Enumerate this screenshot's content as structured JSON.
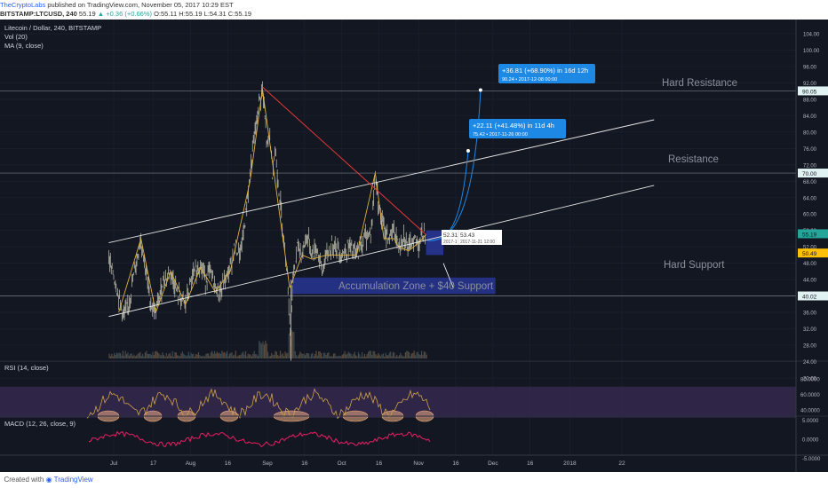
{
  "header": {
    "author": "TheCryptoLabs",
    "published": "published on TradingView.com, November 05, 2017 10:29 EST",
    "symbol": "BITSTAMP:LTCUSD, 240",
    "last": "55.19",
    "change": "+0.36 (+0.66%)",
    "ohlc": "O:55.11 H:55.19 L:54.31 C:55.19"
  },
  "legend": {
    "title": "Litecoin / Dollar, 240, BITSTAMP",
    "vol": "Vol (20)",
    "ma": "MA (9, close)"
  },
  "annotations": {
    "hard_resistance": "Hard Resistance",
    "resistance": "Resistance",
    "hard_support": "Hard Support",
    "accumulation": "Accumulation Zone + $40 Support",
    "measure1_line1": "+22.11 (+41.48%) in 11d 4h",
    "measure1_line2": "75.42  •  2017-11-26  00:00",
    "measure2_line1": "+36.81 (+68.90%) in 16d 12h",
    "measure2_line2": "90.24  •  2017-12-08  00:00",
    "tip_a": "52.31",
    "tip_a_date": "2017-1",
    "tip_b": "53.43",
    "tip_b_date": "2017-11-21  12:00"
  },
  "panes": {
    "rsi": "RSI (14, close)",
    "macd": "MACD (12, 26, close, 9)"
  },
  "footer": {
    "created": "Created with",
    "brand": "TradingView"
  },
  "colors": {
    "background": "#131722",
    "candles": "#c8c8b4",
    "channel": "#e6e6e6",
    "downtrend": "#e53935",
    "wave": "#e0b13a",
    "zone": "#283593",
    "measure": "#1e88e5",
    "rsi_band": "#3b2c57",
    "rsi_line": "#cfa24a",
    "macd": "#e91e63"
  },
  "chart_data": {
    "type": "line",
    "title": "Litecoin / Dollar, 240, BITSTAMP",
    "xlabel": "",
    "ylabel": "",
    "price_ticks": [
      "104.00",
      "100.00",
      "96.00",
      "92.00",
      "88.00",
      "84.00",
      "80.00",
      "76.00",
      "72.00",
      "68.00",
      "64.00",
      "60.00",
      "56.00",
      "52.00",
      "48.00",
      "44.00",
      "40.00",
      "36.00",
      "32.00",
      "28.00",
      "24.00",
      "20.00"
    ],
    "price_labels": [
      {
        "text": "90.05",
        "value": 90.05
      },
      {
        "text": "70.00",
        "value": 70.0
      },
      {
        "text": "55.19",
        "value": 55.19
      },
      {
        "text": "50.49",
        "value": 50.49
      },
      {
        "text": "40.02",
        "value": 40.02
      }
    ],
    "rsi_ticks": [
      {
        "text": "80.0000",
        "value": 80
      },
      {
        "text": "60.0000",
        "value": 60
      },
      {
        "text": "40.0000",
        "value": 40
      }
    ],
    "macd_ticks": [
      {
        "text": "5.0000",
        "value": 5
      },
      {
        "text": "0.0000",
        "value": 0
      },
      {
        "text": "-5.0000",
        "value": -5
      }
    ],
    "x_ticks": [
      {
        "text": "Jul",
        "day": 1
      },
      {
        "text": "17",
        "day": 17
      },
      {
        "text": "Aug",
        "day": 32
      },
      {
        "text": "16",
        "day": 47
      },
      {
        "text": "Sep",
        "day": 63
      },
      {
        "text": "16",
        "day": 78
      },
      {
        "text": "Oct",
        "day": 93
      },
      {
        "text": "16",
        "day": 108
      },
      {
        "text": "Nov",
        "day": 124
      },
      {
        "text": "16",
        "day": 139
      },
      {
        "text": "Dec",
        "day": 154
      },
      {
        "text": "16",
        "day": 169
      },
      {
        "text": "2018",
        "day": 185
      },
      {
        "text": "22",
        "day": 206
      }
    ],
    "price_series": [
      [
        -1,
        49
      ],
      [
        1,
        45
      ],
      [
        3,
        40
      ],
      [
        5,
        35
      ],
      [
        7,
        38
      ],
      [
        10,
        48
      ],
      [
        12,
        54
      ],
      [
        14,
        46
      ],
      [
        16,
        38
      ],
      [
        18,
        36
      ],
      [
        21,
        44
      ],
      [
        24,
        46
      ],
      [
        27,
        40
      ],
      [
        30,
        38
      ],
      [
        33,
        45
      ],
      [
        36,
        48
      ],
      [
        38,
        44
      ],
      [
        40,
        46
      ],
      [
        42,
        42
      ],
      [
        44,
        41
      ],
      [
        46,
        44
      ],
      [
        48,
        47
      ],
      [
        50,
        52
      ],
      [
        52,
        50
      ],
      [
        54,
        58
      ],
      [
        56,
        70
      ],
      [
        58,
        80
      ],
      [
        60,
        88
      ],
      [
        61,
        90.5
      ],
      [
        62,
        83
      ],
      [
        63,
        76
      ],
      [
        64,
        80
      ],
      [
        65,
        70
      ],
      [
        66,
        76
      ],
      [
        67,
        70
      ],
      [
        68,
        64
      ],
      [
        69,
        58
      ],
      [
        70,
        52
      ],
      [
        71,
        46
      ],
      [
        72,
        34
      ],
      [
        72.5,
        30
      ],
      [
        73,
        42
      ],
      [
        75,
        52
      ],
      [
        77,
        50
      ],
      [
        79,
        55
      ],
      [
        81,
        50
      ],
      [
        83,
        52
      ],
      [
        85,
        46
      ],
      [
        87,
        50
      ],
      [
        90,
        53
      ],
      [
        93,
        50
      ],
      [
        96,
        52
      ],
      [
        99,
        50
      ],
      [
        102,
        54
      ],
      [
        105,
        56
      ],
      [
        106.5,
        70
      ],
      [
        108,
        62
      ],
      [
        110,
        56
      ],
      [
        112,
        54
      ],
      [
        114,
        56
      ],
      [
        116,
        52
      ],
      [
        118,
        55
      ],
      [
        120,
        51
      ],
      [
        122,
        54
      ],
      [
        124,
        53
      ],
      [
        126,
        55
      ],
      [
        127,
        55.19
      ]
    ],
    "downtrend": [
      [
        61,
        91
      ],
      [
        127,
        55
      ]
    ],
    "channel_upper": [
      [
        -1,
        53
      ],
      [
        219,
        83
      ]
    ],
    "channel_lower": [
      [
        -1,
        35
      ],
      [
        219,
        67
      ]
    ],
    "horizontal_levels": [
      90.05,
      70.0,
      40.02
    ],
    "accumulation_zone": {
      "day_start": 73,
      "day_end": 155,
      "price_low": 40.5,
      "price_high": 44.5
    },
    "projection_1": {
      "day": 144,
      "price": 75.42
    },
    "projection_2": {
      "day": 149,
      "price": 90.24
    }
  }
}
